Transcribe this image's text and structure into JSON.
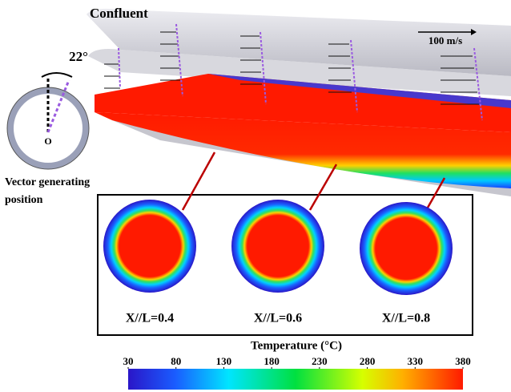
{
  "header": {
    "title": "Confluent",
    "scale_label": "100 m/s"
  },
  "inset": {
    "angle_label": "22°",
    "origin_label": "O",
    "caption_lines": [
      "Vector generating",
      "position"
    ]
  },
  "sections": [
    {
      "label": "X//L=0.4"
    },
    {
      "label": "X//L=0.6"
    },
    {
      "label": "X//L=0.8"
    }
  ],
  "colorbar": {
    "title": "Temperature (°C)",
    "range": [
      30,
      380
    ],
    "ticks": [
      30,
      80,
      130,
      180,
      230,
      280,
      330,
      380
    ]
  }
}
